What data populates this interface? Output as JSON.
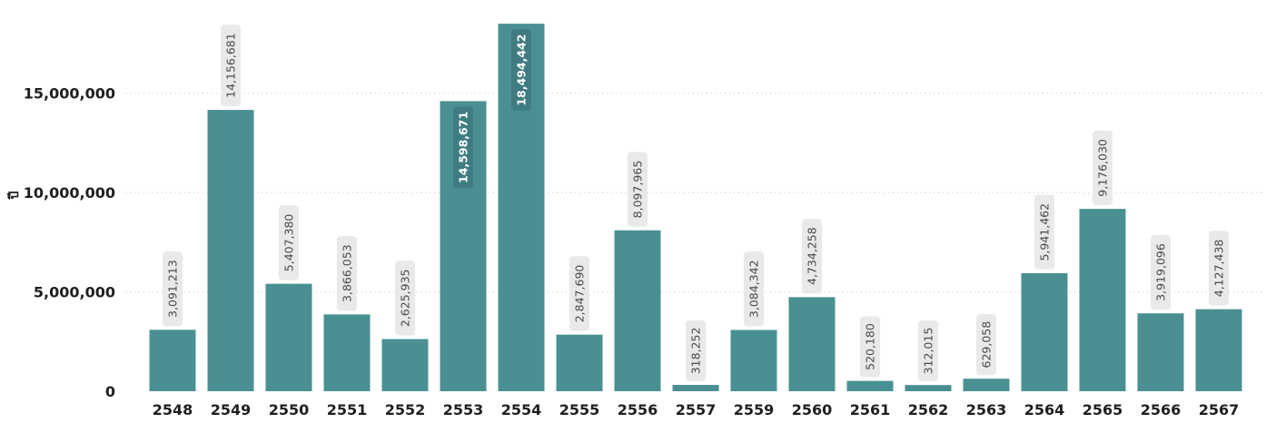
{
  "chart_data": {
    "type": "bar",
    "title": "",
    "xlabel": "",
    "ylabel": "ปี",
    "categories": [
      "2548",
      "2549",
      "2550",
      "2551",
      "2552",
      "2553",
      "2554",
      "2555",
      "2556",
      "2557",
      "2559",
      "2560",
      "2561",
      "2562",
      "2563",
      "2564",
      "2565",
      "2566",
      "2567"
    ],
    "values": [
      3091213,
      14156681,
      5407380,
      3866053,
      2625935,
      14598671,
      18494442,
      2847690,
      8097965,
      318252,
      3084342,
      4734258,
      520180,
      312015,
      629058,
      5941462,
      9176030,
      3919096,
      4127438
    ],
    "data_labels": [
      "3,091,213",
      "14,156,681",
      "5,407,380",
      "3,866,053",
      "2,625,935",
      "14,598,671",
      "18,494,442",
      "2,847,690",
      "8,097,965",
      "318,252",
      "3,084,342",
      "4,734,258",
      "520,180",
      "312,015",
      "629,058",
      "5,941,462",
      "9,176,030",
      "3,919,096",
      "4,127,438"
    ],
    "ylim": [
      0,
      18500000
    ],
    "y_ticks": [
      0,
      5000000,
      10000000,
      15000000
    ],
    "y_tick_labels": [
      "0",
      "5,000,000",
      "10,000,000",
      "15,000,000"
    ],
    "grid": true,
    "bar_color": "#4a9093",
    "label_bg_color": "#e9e9e9",
    "legend": "none"
  }
}
